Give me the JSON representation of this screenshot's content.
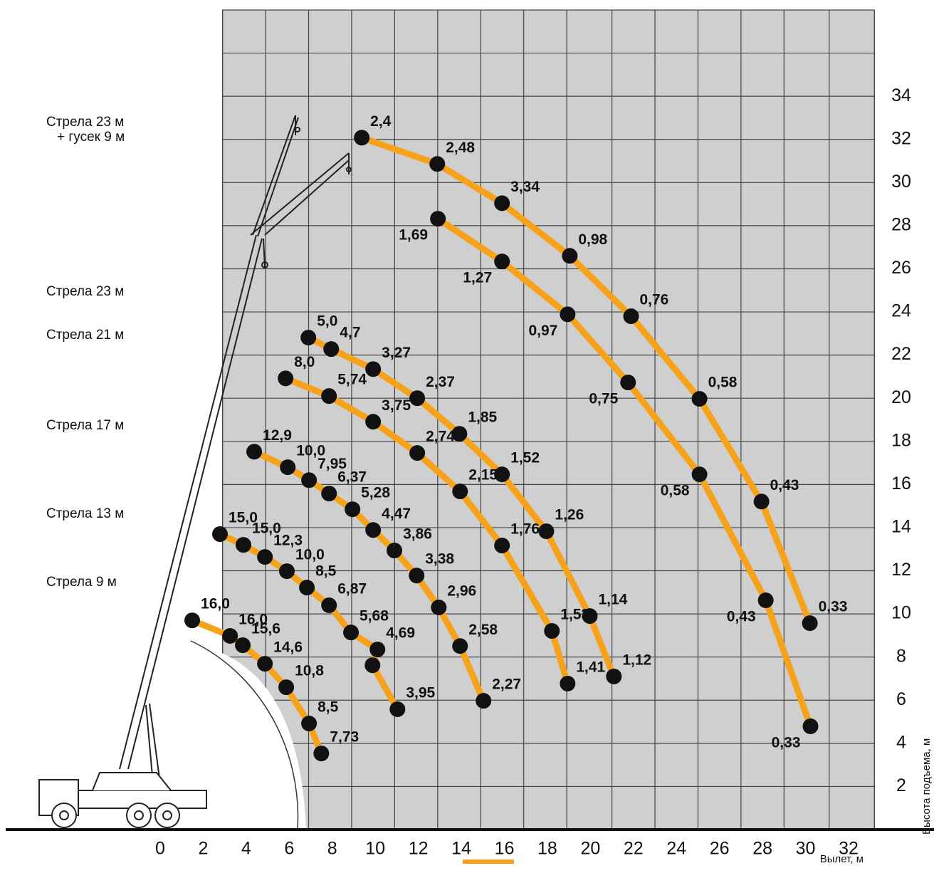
{
  "chart_data": {
    "type": "line",
    "x_label": "Вылет, м",
    "y_label": "Высота подъема, м",
    "boom_labels": [
      "Стрела 23 м",
      "+ гусек 9 м",
      "Стрела 23 м",
      "Стрела 21 м",
      "Стрела 17 м",
      "Стрела 13 м",
      "Стрела 9 м"
    ],
    "xlim": [
      0,
      32
    ],
    "ylim": [
      0,
      38
    ],
    "xticks": [
      0,
      2,
      4,
      6,
      8,
      10,
      12,
      14,
      16,
      18,
      20,
      22,
      24,
      26,
      28,
      30,
      32
    ],
    "yticks": [
      2,
      4,
      6,
      8,
      10,
      12,
      14,
      16,
      18,
      20,
      22,
      24,
      26,
      28,
      30,
      32,
      34
    ],
    "xgrid": [
      2.9,
      4.9,
      6.9,
      8.9,
      10.9,
      12.9,
      14.9,
      16.9,
      18.9,
      21.0,
      23.0,
      25.0,
      27.0,
      29.0,
      31.1,
      33.2
    ],
    "ygrid": [
      2,
      4,
      6,
      8,
      10,
      12,
      14,
      16,
      18,
      20,
      22,
      24,
      26,
      28,
      30,
      32,
      34,
      36
    ],
    "grid": true,
    "color": "#f7a21b",
    "series": [
      {
        "x": [
          9.37,
          12.88,
          15.89,
          19.04,
          21.89,
          25.07,
          27.95,
          30.2
        ],
        "values": [
          32.08,
          30.86,
          29.04,
          26.6,
          23.8,
          19.97,
          15.21,
          9.57
        ],
        "labels": [
          "2,4",
          "2,48",
          "3,34",
          "0,98",
          "0,76",
          "0,58",
          "0,43",
          "0,33"
        ]
      },
      {
        "x": [
          12.91,
          15.89,
          18.94,
          21.75,
          25.07,
          28.15,
          30.23
        ],
        "values": [
          28.32,
          26.34,
          23.89,
          20.73,
          16.47,
          10.63,
          4.79
        ],
        "labels": [
          "1,69",
          "1,27",
          "0,97",
          "0,75",
          "0,58",
          "0,43",
          "0,33"
        ]
      },
      {
        "x": [
          6.89,
          7.95,
          9.9,
          11.95,
          13.91,
          15.89,
          17.95,
          19.97,
          21.09
        ],
        "values": [
          22.81,
          22.28,
          21.35,
          20.0,
          18.35,
          16.47,
          13.83,
          9.9,
          7.1
        ],
        "labels": [
          "5,0",
          "4,7",
          "3,27",
          "2,37",
          "1,85",
          "1,52",
          "1,26",
          "1,14",
          "1,12"
        ]
      },
      {
        "x": [
          5.83,
          7.85,
          9.9,
          11.95,
          13.94,
          15.89,
          18.21,
          18.94
        ],
        "values": [
          20.92,
          20.1,
          18.91,
          17.46,
          15.68,
          13.17,
          9.21,
          6.77
        ],
        "labels": [
          "8,0",
          "5,74",
          "3,75",
          "2,74",
          "2,15",
          "1,76",
          "1,53",
          "1,41"
        ]
      },
      {
        "x": [
          4.37,
          5.93,
          6.92,
          7.85,
          8.94,
          9.9,
          10.89,
          11.92,
          12.95,
          13.94,
          15.03
        ],
        "values": [
          17.52,
          16.8,
          16.2,
          15.58,
          14.85,
          13.89,
          12.94,
          11.78,
          10.3,
          8.51,
          5.97
        ],
        "labels": [
          "12,9",
          "10,0",
          "7,95",
          "6,37",
          "5,28",
          "4,47",
          "3,86",
          "3,38",
          "2,96",
          "2,58",
          "2,27"
        ]
      },
      {
        "x": [
          2.78,
          3.87,
          4.87,
          5.89,
          6.82,
          7.85,
          8.87,
          10.1,
          9.87,
          11.03
        ],
        "values": [
          13.7,
          13.2,
          12.64,
          11.98,
          11.22,
          10.4,
          9.14,
          8.35,
          7.62,
          5.58
        ],
        "labels": [
          "15,0",
          "15,0",
          "12,3",
          "10,0",
          "8,5",
          "6,87",
          "5,68",
          "4,69",
          null,
          "3,95"
        ]
      },
      {
        "x": [
          1.49,
          3.25,
          3.84,
          4.87,
          5.86,
          6.92,
          7.49
        ],
        "values": [
          9.7,
          8.98,
          8.55,
          7.69,
          6.6,
          4.92,
          3.53
        ],
        "labels": [
          "16,0",
          "16,0",
          "15,6",
          "14,6",
          "10,8",
          "8,5",
          "7,73"
        ]
      }
    ]
  }
}
